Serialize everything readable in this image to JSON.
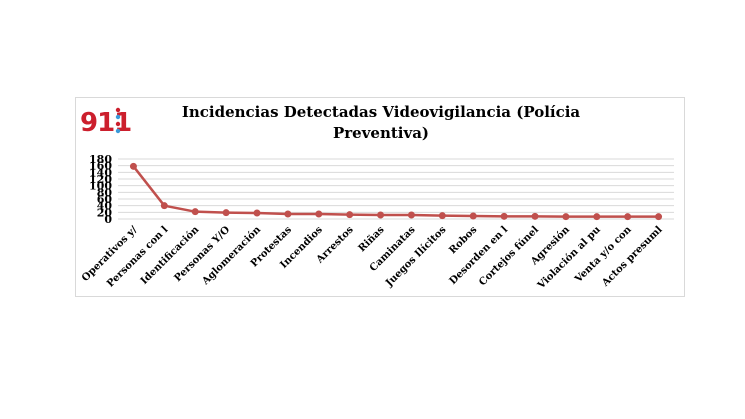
{
  "logo": {
    "text": "911",
    "icon_name": "emergency-911-logo"
  },
  "chart_data": {
    "type": "line",
    "title_lines": [
      "Incidencias Detectadas Videovigilancia (Polícia",
      "Preventiva)"
    ],
    "categories": [
      "Operativos y/",
      "Personas con l",
      "Identificación",
      "Personas Y/O",
      "Aglomeración",
      "Protestas",
      "Incendios",
      "Arrestos",
      "Riñas",
      "Caminatas",
      "Juegos Ilícitos",
      "Robos",
      "Desorden en l",
      "Cortejos fúnel",
      "Agresión",
      "Violación al pu",
      "Venta y/o con",
      "Actos presuml"
    ],
    "series": [
      {
        "values": [
          158,
          40,
          22,
          19,
          18,
          15,
          15,
          13,
          12,
          12,
          10,
          9,
          8,
          8,
          7,
          7,
          7,
          7
        ],
        "color": "#c0504d"
      }
    ],
    "ylim": [
      0,
      180
    ],
    "yticks": [
      0,
      20,
      40,
      60,
      80,
      100,
      120,
      140,
      160,
      180
    ],
    "grid": true,
    "legend": "none"
  }
}
